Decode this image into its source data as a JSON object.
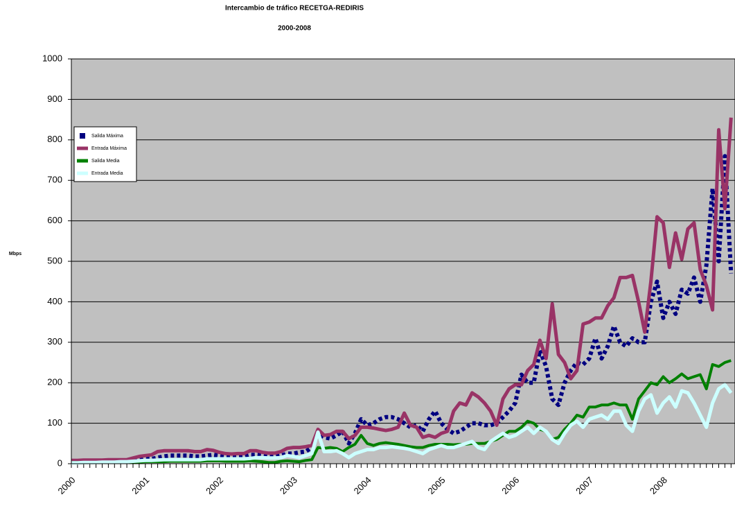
{
  "chart_data": {
    "type": "line",
    "title": "Intercambio de tráfico RECETGA-REDIRIS",
    "subtitle": "2000-2008",
    "y_label": "Mbps",
    "legend": "upper left",
    "grid": true,
    "ylim": [
      0,
      1000
    ],
    "yticks": [
      0,
      100,
      200,
      300,
      400,
      500,
      600,
      700,
      800,
      900,
      1000
    ],
    "categories": [
      "2000",
      null,
      null,
      null,
      null,
      null,
      null,
      null,
      null,
      null,
      null,
      null,
      "2001",
      null,
      null,
      null,
      null,
      null,
      null,
      null,
      null,
      null,
      null,
      null,
      "2002",
      null,
      null,
      null,
      null,
      null,
      null,
      null,
      null,
      null,
      null,
      null,
      "2003",
      null,
      null,
      null,
      null,
      null,
      null,
      null,
      null,
      null,
      null,
      null,
      "2004",
      null,
      null,
      null,
      null,
      null,
      null,
      null,
      null,
      null,
      null,
      null,
      "2005",
      null,
      null,
      null,
      null,
      null,
      null,
      null,
      null,
      null,
      null,
      null,
      "2006",
      null,
      null,
      null,
      null,
      null,
      null,
      null,
      null,
      null,
      null,
      null,
      "2007",
      null,
      null,
      null,
      null,
      null,
      null,
      null,
      null,
      null,
      null,
      null,
      "2008",
      null,
      null,
      null,
      null,
      null,
      null,
      null,
      null,
      null,
      null,
      null
    ],
    "series": [
      {
        "name": "Salida Máxima",
        "color": "#000080",
        "dashed": true,
        "values": [
          5,
          5,
          5,
          5,
          6,
          6,
          6,
          6,
          7,
          7,
          8,
          10,
          12,
          12,
          15,
          18,
          20,
          20,
          20,
          20,
          18,
          18,
          20,
          22,
          20,
          18,
          18,
          18,
          18,
          22,
          22,
          20,
          18,
          18,
          20,
          25,
          25,
          28,
          30,
          40,
          75,
          65,
          62,
          70,
          80,
          50,
          75,
          110,
          95,
          100,
          110,
          115,
          115,
          110,
          100,
          90,
          95,
          80,
          110,
          130,
          100,
          85,
          75,
          80,
          90,
          100,
          100,
          95,
          95,
          100,
          115,
          130,
          150,
          220,
          200,
          200,
          280,
          240,
          160,
          145,
          200,
          230,
          250,
          245,
          260,
          310,
          260,
          290,
          340,
          300,
          290,
          310,
          300,
          300,
          400,
          450,
          360,
          400,
          370,
          430,
          420,
          460,
          400,
          490,
          680,
          500,
          760,
          470
        ]
      },
      {
        "name": "Entrada Máxima",
        "color": "#993366",
        "values": [
          8,
          8,
          9,
          9,
          9,
          9,
          10,
          10,
          10,
          10,
          14,
          18,
          20,
          22,
          30,
          32,
          32,
          32,
          32,
          32,
          30,
          30,
          35,
          33,
          28,
          25,
          24,
          25,
          25,
          32,
          32,
          28,
          26,
          26,
          30,
          38,
          40,
          40,
          42,
          45,
          85,
          70,
          72,
          80,
          80,
          62,
          70,
          90,
          90,
          88,
          85,
          82,
          85,
          90,
          125,
          95,
          90,
          65,
          70,
          65,
          75,
          80,
          130,
          150,
          145,
          175,
          165,
          150,
          130,
          95,
          160,
          185,
          195,
          195,
          230,
          245,
          305,
          260,
          395,
          270,
          250,
          210,
          230,
          345,
          350,
          360,
          360,
          390,
          410,
          460,
          460,
          465,
          400,
          325,
          450,
          610,
          595,
          485,
          570,
          505,
          580,
          595,
          480,
          440,
          380,
          825,
          630,
          855
        ]
      },
      {
        "name": "Salida Media",
        "color": "#008000",
        "values": [
          3,
          3,
          3,
          3,
          3,
          3,
          3,
          3,
          3,
          3,
          4,
          4,
          5,
          5,
          5,
          5,
          6,
          6,
          6,
          6,
          6,
          6,
          7,
          7,
          7,
          6,
          6,
          6,
          6,
          7,
          6,
          5,
          3,
          3,
          6,
          7,
          6,
          5,
          8,
          10,
          40,
          38,
          40,
          38,
          30,
          40,
          48,
          70,
          50,
          45,
          50,
          52,
          50,
          48,
          45,
          42,
          40,
          40,
          45,
          48,
          48,
          48,
          47,
          48,
          48,
          50,
          50,
          50,
          55,
          60,
          70,
          80,
          80,
          90,
          105,
          100,
          85,
          80,
          60,
          65,
          85,
          100,
          120,
          115,
          140,
          140,
          145,
          145,
          150,
          145,
          145,
          110,
          160,
          180,
          200,
          195,
          215,
          200,
          210,
          222,
          210,
          215,
          220,
          185,
          245,
          240,
          250,
          255
        ]
      },
      {
        "name": "Entrada Media",
        "color": "#ccffff",
        "values": [
          2,
          2,
          3,
          3,
          3,
          4,
          4,
          4,
          5,
          5,
          6,
          7,
          8,
          8,
          9,
          10,
          10,
          10,
          10,
          10,
          10,
          10,
          12,
          12,
          12,
          12,
          12,
          12,
          12,
          13,
          15,
          15,
          14,
          14,
          15,
          20,
          18,
          15,
          20,
          25,
          78,
          30,
          30,
          32,
          25,
          15,
          25,
          30,
          35,
          35,
          40,
          40,
          42,
          40,
          38,
          35,
          30,
          25,
          35,
          40,
          45,
          40,
          40,
          45,
          50,
          55,
          40,
          35,
          55,
          65,
          75,
          65,
          70,
          80,
          90,
          75,
          90,
          80,
          60,
          50,
          75,
          95,
          105,
          90,
          110,
          115,
          120,
          110,
          130,
          130,
          95,
          80,
          130,
          160,
          170,
          125,
          150,
          165,
          140,
          180,
          175,
          150,
          120,
          90,
          150,
          185,
          195,
          175
        ]
      }
    ]
  }
}
